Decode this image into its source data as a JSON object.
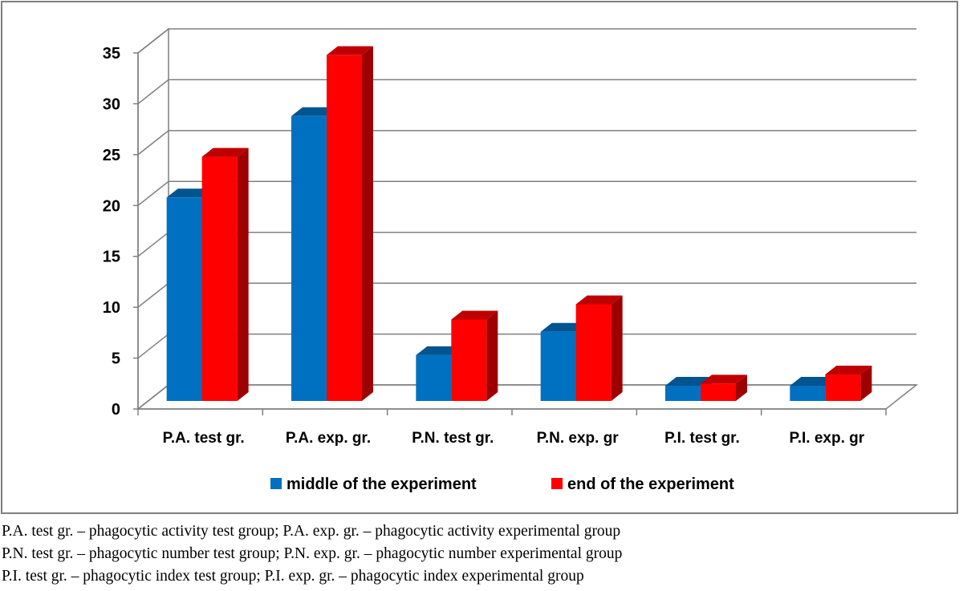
{
  "chart_data": {
    "type": "bar",
    "title": "",
    "xlabel": "",
    "ylabel": "",
    "ylim": [
      0,
      35
    ],
    "yticks": [
      0,
      5,
      10,
      15,
      20,
      25,
      30,
      35
    ],
    "grid": true,
    "legend_position": "bottom",
    "three_d": true,
    "categories": [
      "P.A. test gr.",
      "P.A. exp. gr.",
      "P.N. test gr.",
      "P.N. exp. gr",
      "P.I. test gr.",
      "P.I. exp. gr"
    ],
    "series": [
      {
        "name": "middle of the experiment",
        "color": "#0070c0",
        "values": [
          20,
          28,
          4.5,
          6.8,
          1.5,
          1.5
        ]
      },
      {
        "name": "end of the experiment",
        "color": "#ff0000",
        "values": [
          24,
          34,
          8,
          9.5,
          1.7,
          2.6
        ]
      }
    ]
  },
  "footnotes": [
    "P.A. test gr. – phagocytic activity test group; P.A. exp. gr. – phagocytic activity experimental group",
    "P.N. test gr. – phagocytic number test group; P.N. exp. gr. – phagocytic number experimental group",
    "P.I. test gr. – phagocytic index test group; P.I. exp. gr. – phagocytic index experimental group"
  ]
}
